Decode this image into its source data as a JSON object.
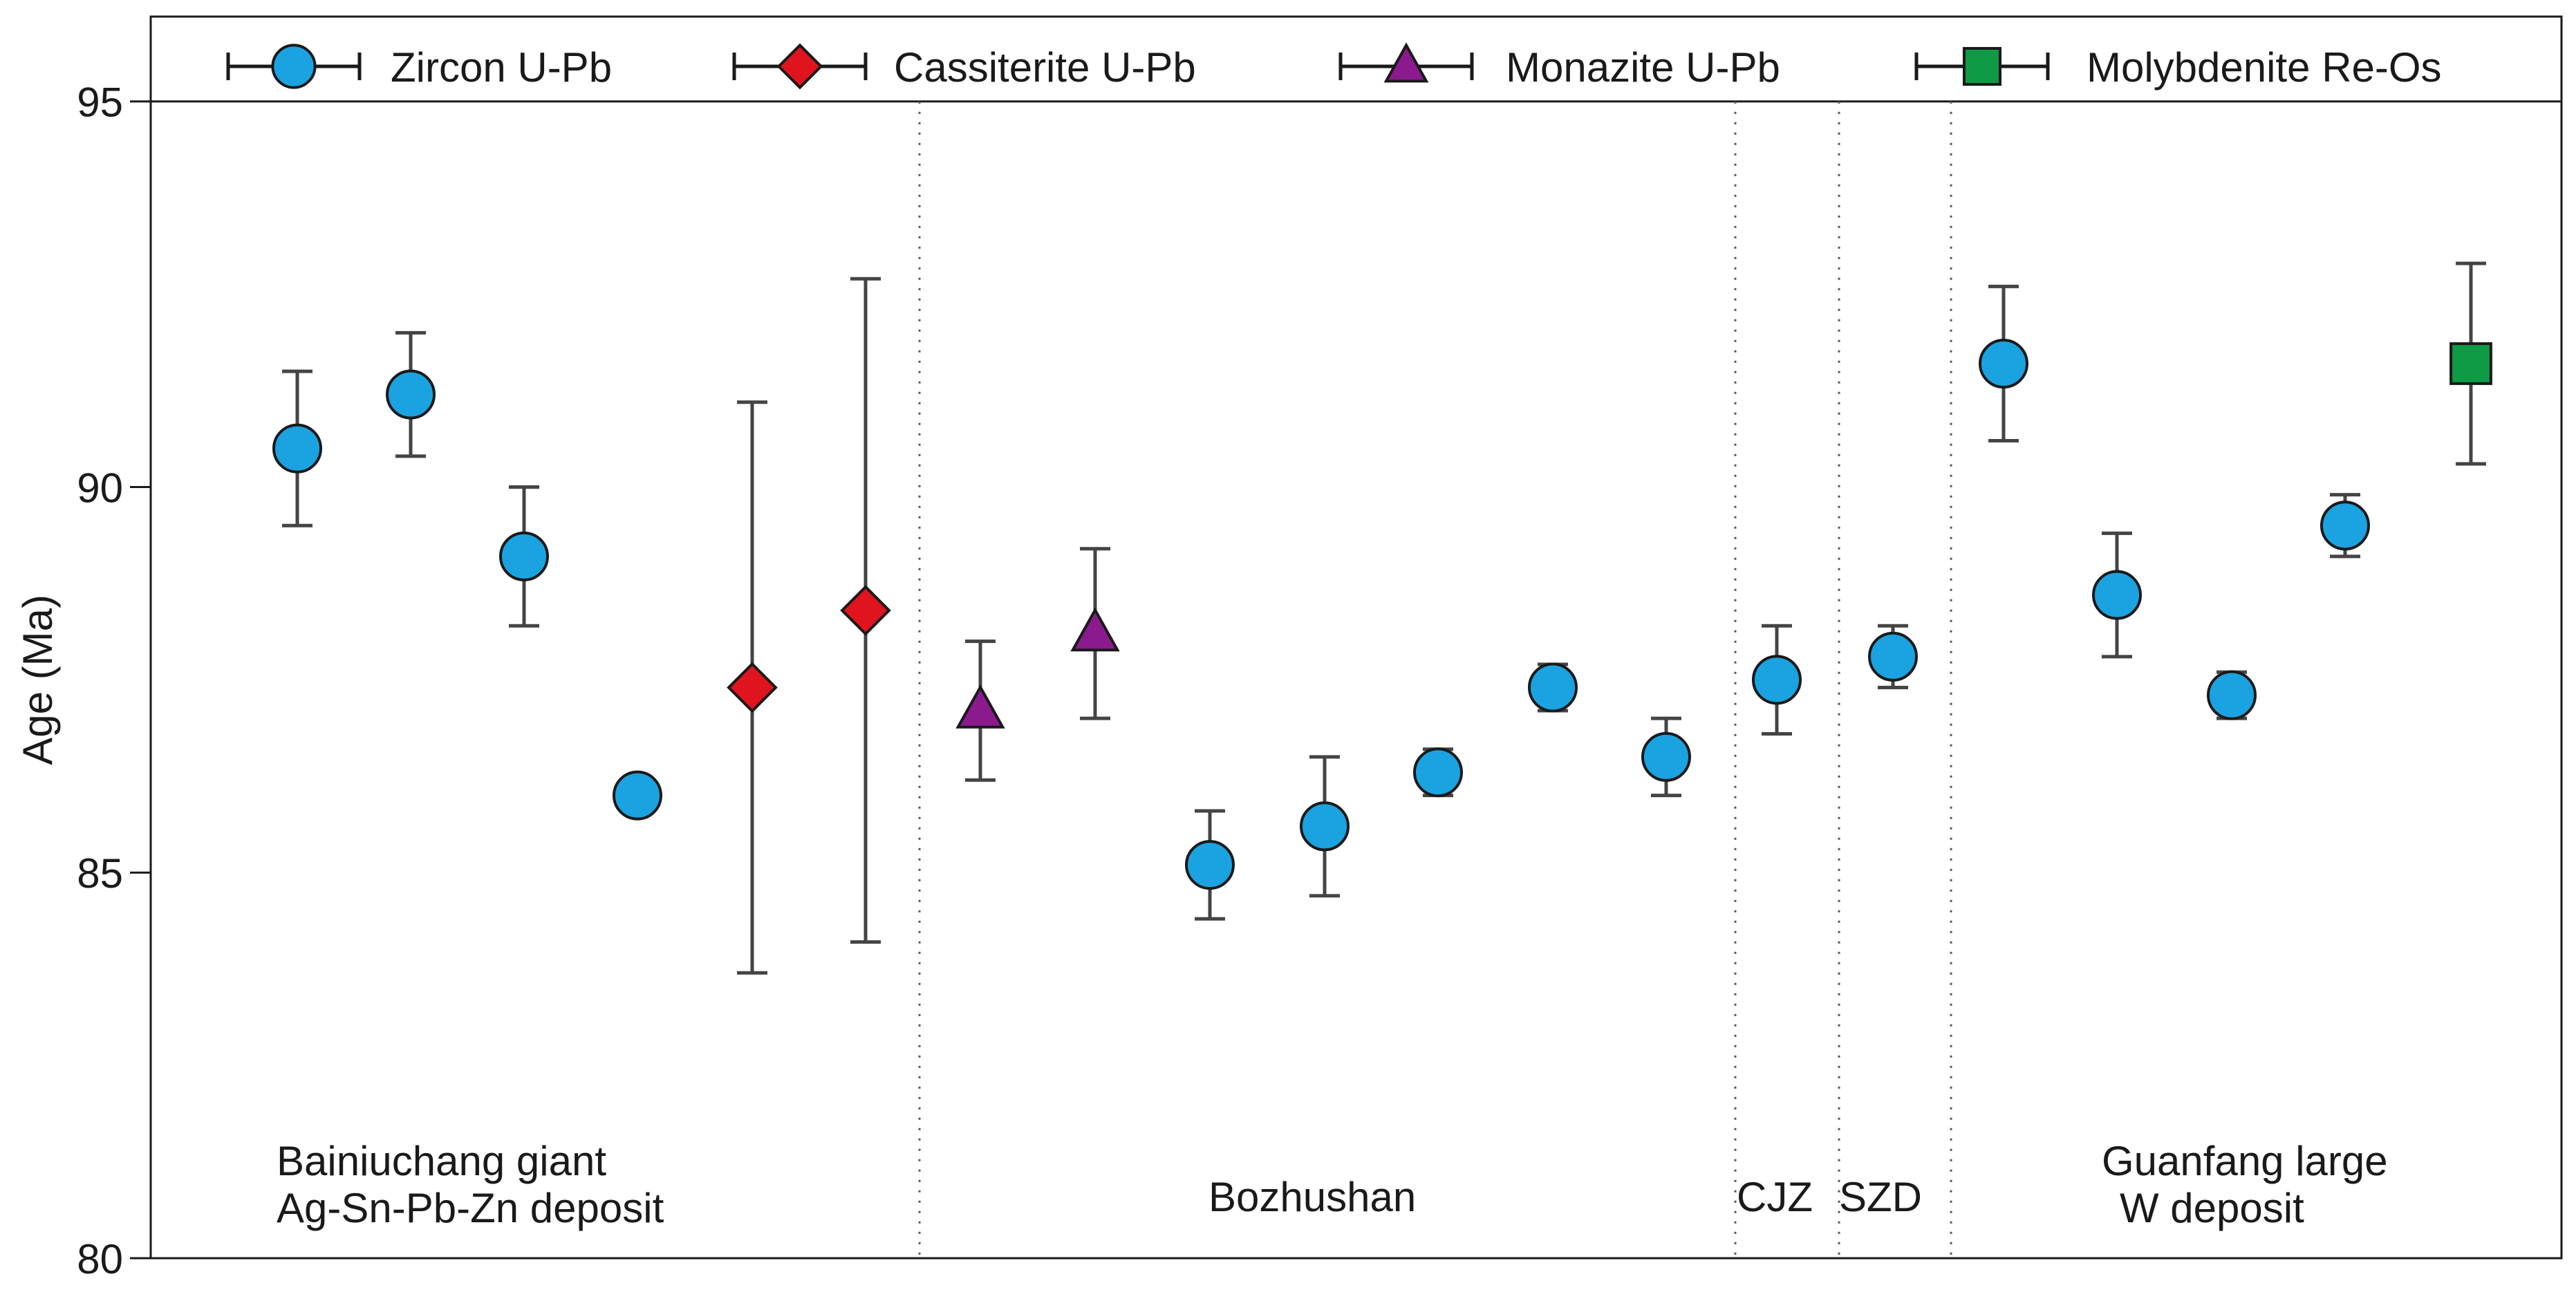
{
  "chart_data": {
    "type": "scatter",
    "title": "",
    "xlabel": "",
    "ylabel": "Age (Ma)",
    "ylim": [
      80,
      96.1
    ],
    "yticks": [
      80,
      85,
      90,
      95
    ],
    "grid": false,
    "legend_position": "top",
    "series": [
      {
        "name": "Zircon U-Pb",
        "marker": "circle",
        "color": "#1aa3e0",
        "points": [
          {
            "x": 1,
            "y": 90.5,
            "err": 1.0
          },
          {
            "x": 2,
            "y": 91.2,
            "err": 0.8
          },
          {
            "x": 3,
            "y": 89.1,
            "err": 0.9
          },
          {
            "x": 4,
            "y": 86.0,
            "err": 0
          },
          {
            "x": 11,
            "y": 85.1,
            "err": 0.7
          },
          {
            "x": 12,
            "y": 85.6,
            "err": 0.9
          },
          {
            "x": 13,
            "y": 86.3,
            "err": 0.3
          },
          {
            "x": 14,
            "y": 87.4,
            "err": 0.3
          },
          {
            "x": 15,
            "y": 86.5,
            "err": 0.5
          },
          {
            "x": 16,
            "y": 87.5,
            "err": 0.7
          },
          {
            "x": 17,
            "y": 87.8,
            "err": 0.4
          },
          {
            "x": 18,
            "y": 91.6,
            "err": 1.0
          },
          {
            "x": 19,
            "y": 88.6,
            "err": 0.8
          },
          {
            "x": 20,
            "y": 87.3,
            "err": 0.3
          },
          {
            "x": 21,
            "y": 89.5,
            "err": 0.4
          }
        ]
      },
      {
        "name": "Cassiterite U-Pb",
        "marker": "diamond",
        "color": "#e0141e",
        "points": [
          {
            "x": 5,
            "y": 87.4,
            "err": 3.7
          },
          {
            "x": 6,
            "y": 88.4,
            "err": 4.3
          }
        ]
      },
      {
        "name": "Monazite U-Pb",
        "marker": "triangle",
        "color": "#8b1a8e",
        "points": [
          {
            "x": 7,
            "y": 87.1,
            "err": 0.9
          },
          {
            "x": 8,
            "y": 88.1,
            "err": 1.1
          }
        ]
      },
      {
        "name": "Molybdenite Re-Os",
        "marker": "square",
        "color": "#0f9a45",
        "points": [
          {
            "x": 22,
            "y": 91.6,
            "err": 1.3
          }
        ]
      }
    ],
    "group_labels": [
      {
        "x": 3.0,
        "lines": [
          "Bainiuchang giant",
          "Ag-Sn-Pb-Zn deposit"
        ]
      },
      {
        "x": 11.6,
        "lines": [
          "Bozhushan"
        ]
      },
      {
        "x": 16.0,
        "lines": [
          "CJZ"
        ]
      },
      {
        "x": 17.0,
        "lines": [
          "SZD"
        ]
      },
      {
        "x": 19.5,
        "lines": [
          "Guanfang large",
          "W deposit"
        ]
      }
    ],
    "dividers": [
      6.5,
      15.6,
      16.5,
      17.5
    ]
  }
}
